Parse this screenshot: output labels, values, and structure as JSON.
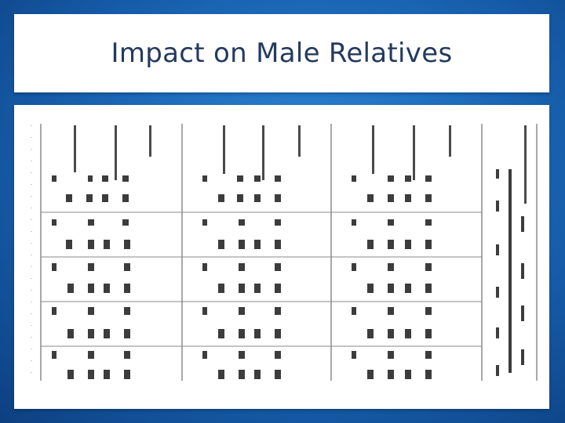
{
  "slide": {
    "title": "Impact on Male Relatives"
  },
  "table_image": {
    "rows": 5,
    "column_groups": 3,
    "row_lines": 4
  }
}
